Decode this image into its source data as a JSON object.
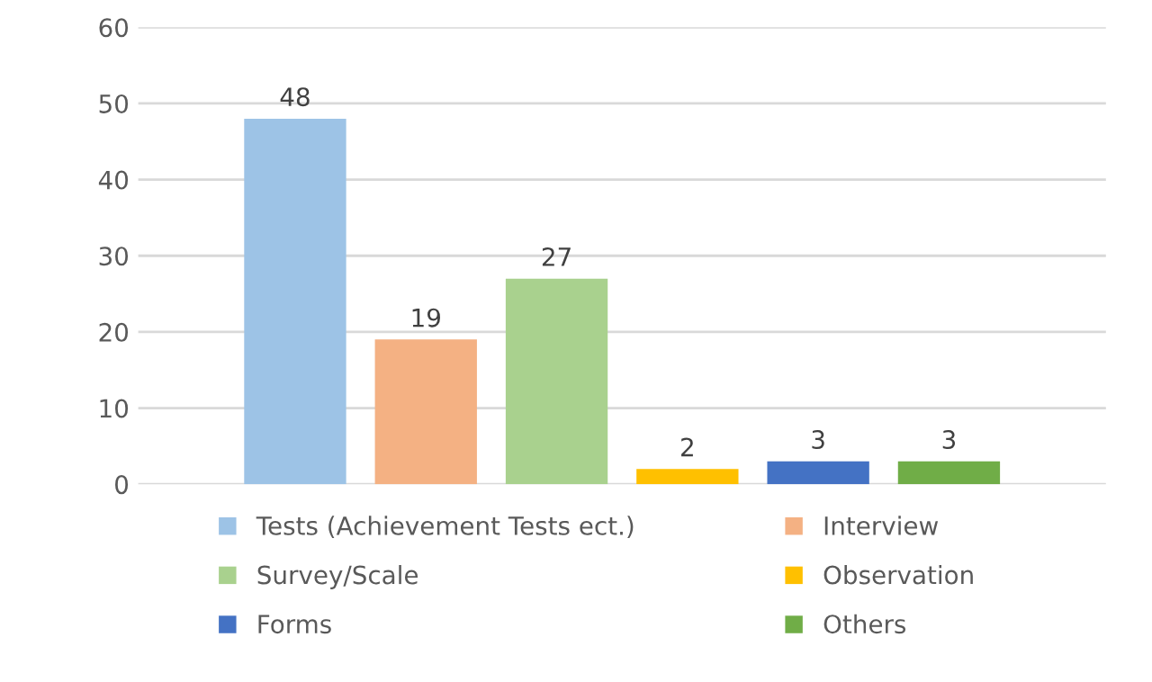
{
  "chart_data": {
    "type": "bar",
    "categories": [
      null,
      null,
      null,
      null,
      null,
      null
    ],
    "series": [
      {
        "name": "Tests (Achievement Tests ect.)",
        "color": "#9dc3e6",
        "values": [
          48,
          null,
          null,
          null,
          null,
          null
        ]
      },
      {
        "name": "Interview",
        "color": "#f4b183",
        "values": [
          null,
          19,
          null,
          null,
          null,
          null
        ]
      },
      {
        "name": "Survey/Scale",
        "color": "#a9d18e",
        "values": [
          null,
          null,
          27,
          null,
          null,
          null
        ]
      },
      {
        "name": "Observation",
        "color": "#ffc000",
        "values": [
          null,
          null,
          null,
          2,
          null,
          null
        ]
      },
      {
        "name": "Forms",
        "color": "#4472c4",
        "values": [
          null,
          null,
          null,
          null,
          3,
          null
        ]
      },
      {
        "name": "Others",
        "color": "#70ad47",
        "values": [
          null,
          null,
          null,
          null,
          null,
          3
        ]
      }
    ],
    "ylim": [
      0,
      60
    ],
    "yticks": [
      0,
      10,
      20,
      30,
      40,
      50,
      60
    ],
    "grid": "y",
    "data_labels": true,
    "legend": "bottom"
  }
}
